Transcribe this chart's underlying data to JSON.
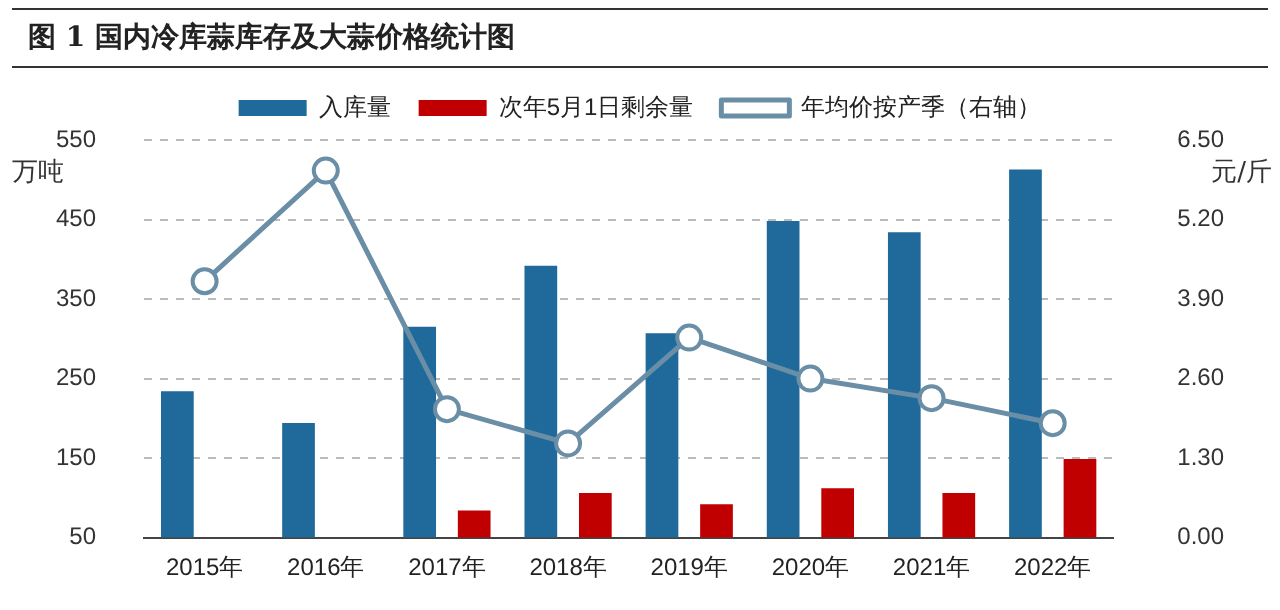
{
  "chart_data": {
    "type": "bar",
    "title": "图 1  国内冷库蒜库存及大蒜价格统计图",
    "ylabel": "万吨",
    "y2label": "元/斤",
    "categories": [
      "2015年",
      "2016年",
      "2017年",
      "2018年",
      "2019年",
      "2020年",
      "2021年",
      "2022年"
    ],
    "series": [
      {
        "name": "入库量",
        "color": "#1f6a9a",
        "values": [
          234,
          194,
          315,
          392,
          307,
          448,
          434,
          513
        ]
      },
      {
        "name": "次年5月1日剩余量",
        "color": "#c00000",
        "values": [
          null,
          null,
          84,
          106,
          92,
          112,
          106,
          149
        ]
      },
      {
        "name": "年均价按产季（右轴）",
        "type": "line",
        "axis": "y2",
        "color": "#6a8ea6",
        "marker": "circle",
        "values": [
          4.19,
          6.0,
          2.1,
          1.54,
          3.27,
          2.6,
          2.28,
          1.87
        ]
      }
    ],
    "ylim": [
      50,
      550
    ],
    "yticks": [
      50,
      150,
      250,
      350,
      450,
      550
    ],
    "y2lim": [
      0,
      6.5
    ],
    "y2ticks": [
      {
        "value": 0,
        "label": "0.00"
      },
      {
        "value": 1.3,
        "label": "1.30"
      },
      {
        "value": 2.6,
        "label": "2.60"
      },
      {
        "value": 3.9,
        "label": "3.90"
      },
      {
        "value": 5.2,
        "label": "5.20"
      },
      {
        "value": 6.5,
        "label": "6.50"
      }
    ],
    "grid": "y",
    "legend": "top"
  }
}
